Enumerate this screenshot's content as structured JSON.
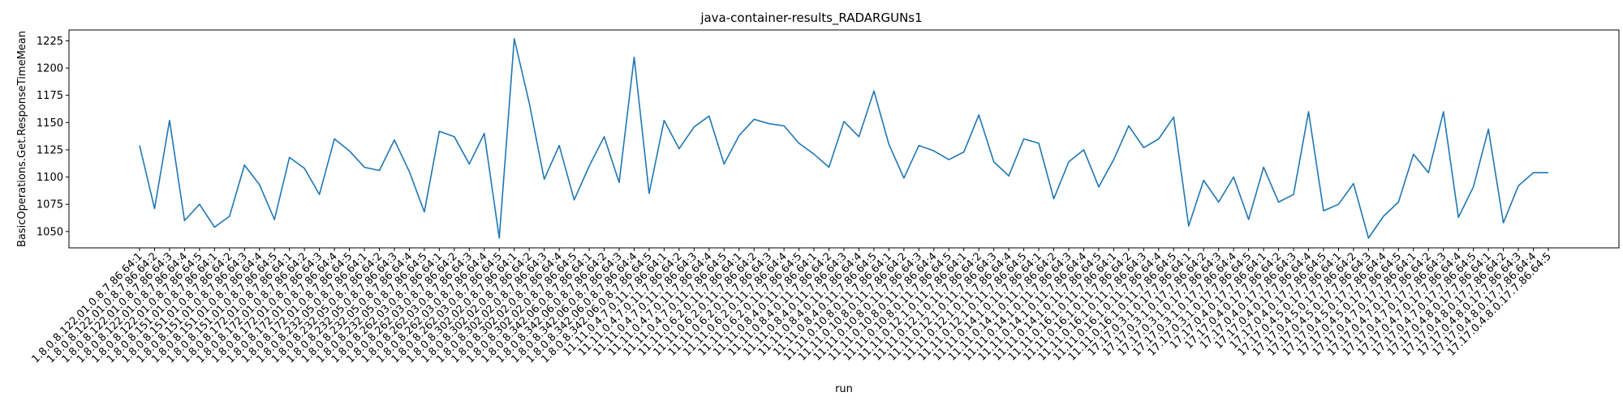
{
  "chart_data": {
    "type": "line",
    "title": "java-container-results_RADARGUNs1",
    "xlabel": "run",
    "ylabel": "BasicOperations.Get.ResponseTimeMean",
    "ylim": [
      1035,
      1235
    ],
    "yticks": [
      1050,
      1075,
      1100,
      1125,
      1150,
      1175,
      1200,
      1225
    ],
    "grid": false,
    "line_color": "#1f77b4",
    "categories": [
      "1.8.0.8.122.01.0.8.7.86.64:1",
      "1.8.0.8.122.01.0.8.7.86.64:2",
      "1.8.0.8.122.01.0.8.7.86.64:3",
      "1.8.0.8.122.01.0.8.7.86.64:4",
      "1.8.0.8.122.01.0.8.7.86.64:5",
      "1.8.0.8.151.01.0.8.7.86.64:1",
      "1.8.0.8.151.01.0.8.7.86.64:2",
      "1.8.0.8.151.01.0.8.7.86.64:3",
      "1.8.0.8.151.01.0.8.7.86.64:4",
      "1.8.0.8.151.01.0.8.7.86.64:5",
      "1.8.0.8.172.01.0.8.7.86.64:1",
      "1.8.0.8.172.01.0.8.7.86.64:2",
      "1.8.0.8.172.01.0.8.7.86.64:3",
      "1.8.0.8.172.01.0.8.7.86.64:4",
      "1.8.0.8.172.01.0.8.7.86.64:5",
      "1.8.0.8.232.05.0.8.7.86.64:1",
      "1.8.0.8.232.05.0.8.7.86.64:2",
      "1.8.0.8.232.05.0.8.7.86.64:3",
      "1.8.0.8.232.05.0.8.7.86.64:4",
      "1.8.0.8.232.05.0.8.7.86.64:5",
      "1.8.0.8.262.03.0.8.7.86.64:1",
      "1.8.0.8.262.03.0.8.7.86.64:2",
      "1.8.0.8.262.03.0.8.7.86.64:3",
      "1.8.0.8.262.03.0.8.7.86.64:4",
      "1.8.0.8.262.03.0.8.7.86.64:5",
      "1.8.0.8.302.02.0.8.7.86.64:1",
      "1.8.0.8.302.02.0.8.7.86.64:2",
      "1.8.0.8.302.02.0.8.7.86.64:3",
      "1.8.0.8.302.02.0.8.7.86.64:4",
      "1.8.0.8.302.02.0.8.7.86.64:5",
      "1.8.0.8.342.06.0.8.7.86.64:1",
      "1.8.0.8.342.06.0.8.7.86.64:2",
      "1.8.0.8.342.06.0.8.7.86.64:3",
      "1.8.0.8.342.06.0.8.7.86.64:4",
      "1.8.0.8.342.06.0.8.7.86.64:5",
      "11.11.0.4.7.0.11.7.86.64:1",
      "11.11.0.4.7.0.11.7.86.64:2",
      "11.11.0.4.7.0.11.7.86.64:3",
      "11.11.0.4.7.0.11.7.86.64:4",
      "11.11.0.4.7.0.11.7.86.64:5",
      "11.11.0.6.2.0.11.7.86.64:1",
      "11.11.0.6.2.0.11.7.86.64:2",
      "11.11.0.6.2.0.11.7.86.64:3",
      "11.11.0.6.2.0.11.7.86.64:4",
      "11.11.0.6.2.0.11.7.86.64:5",
      "11.11.0.8.4.0.11.7.86.64:1",
      "11.11.0.8.4.0.11.7.86.64:2",
      "11.11.0.8.4.0.11.7.86.64:3",
      "11.11.0.8.4.0.11.7.86.64:4",
      "11.11.0.8.4.0.11.7.86.64:5",
      "11.11.0.10.8.0.11.7.86.64:1",
      "11.11.0.10.8.0.11.7.86.64:2",
      "11.11.0.10.8.0.11.7.86.64:3",
      "11.11.0.10.8.0.11.7.86.64:4",
      "11.11.0.10.8.0.11.7.86.64:5",
      "11.11.0.12.1.0.11.7.86.64:1",
      "11.11.0.12.1.0.11.7.86.64:2",
      "11.11.0.12.1.0.11.7.86.64:3",
      "11.11.0.12.1.0.11.7.86.64:4",
      "11.11.0.12.1.0.11.7.86.64:5",
      "11.11.0.14.1.0.11.7.86.64:1",
      "11.11.0.14.1.0.11.7.86.64:2",
      "11.11.0.14.1.0.11.7.86.64:3",
      "11.11.0.14.1.0.11.7.86.64:4",
      "11.11.0.14.1.0.11.7.86.64:5",
      "11.11.0.16.1.0.11.7.86.64:1",
      "11.11.0.16.1.0.11.7.86.64:2",
      "11.11.0.16.1.0.11.7.86.64:3",
      "11.11.0.16.1.0.11.7.86.64:4",
      "11.11.0.16.1.0.11.7.86.64:5",
      "17.17.0.3.1.0.17.7.86.64:1",
      "17.17.0.3.1.0.17.7.86.64:2",
      "17.17.0.3.1.0.17.7.86.64:3",
      "17.17.0.3.1.0.17.7.86.64:4",
      "17.17.0.3.1.0.17.7.86.64:5",
      "17.17.0.4.0.17.7.86.64:1",
      "17.17.0.4.0.17.7.86.64:2",
      "17.17.0.4.0.17.7.86.64:3",
      "17.17.0.4.0.17.7.86.64:4",
      "17.17.0.4.0.17.7.86.64:5",
      "17.17.0.4.5.0.17.7.86.64:1",
      "17.17.0.4.5.0.17.7.86.64:2",
      "17.17.0.4.5.0.17.7.86.64:3",
      "17.17.0.4.5.0.17.7.86.64:4",
      "17.17.0.4.5.0.17.7.86.64:5",
      "17.17.0.4.7.0.17.7.86.64:1",
      "17.17.0.4.7.0.17.7.86.64:2",
      "17.17.0.4.7.0.17.7.86.64:3",
      "17.17.0.4.7.0.17.7.86.64:4",
      "17.17.0.4.7.0.17.7.86.64:5",
      "17.17.0.4.8.0.17.7.86.64:1",
      "17.17.0.4.8.0.17.7.86.64:2",
      "17.17.0.4.8.0.17.7.86.64:3",
      "17.17.0.4.8.0.17.7.86.64:4",
      "17.17.0.4.8.0.17.7.86.64:5"
    ],
    "series": [
      {
        "values": [
          1129,
          1071,
          1152,
          1060,
          1075,
          1054,
          1064,
          1111,
          1093,
          1061,
          1118,
          1108,
          1084,
          1135,
          1124,
          1109,
          1106,
          1134,
          1105,
          1068,
          1142,
          1137,
          1112,
          1140,
          1044,
          1227,
          1168,
          1098,
          1129,
          1079,
          1110,
          1137,
          1095,
          1210,
          1085,
          1152,
          1126,
          1146,
          1156,
          1112,
          1138,
          1153,
          1149,
          1147,
          1131,
          1121,
          1109,
          1151,
          1137,
          1179,
          1130,
          1099,
          1129,
          1124,
          1116,
          1123,
          1157,
          1114,
          1101,
          1135,
          1131,
          1080,
          1114,
          1125,
          1091,
          1116,
          1147,
          1127,
          1135,
          1155,
          1055,
          1097,
          1077,
          1100,
          1061,
          1109,
          1077,
          1084,
          1160,
          1069,
          1075,
          1094,
          1044,
          1064,
          1077,
          1121,
          1104,
          1160,
          1063,
          1091,
          1144,
          1058,
          1092,
          1104,
          1104
        ]
      }
    ]
  }
}
